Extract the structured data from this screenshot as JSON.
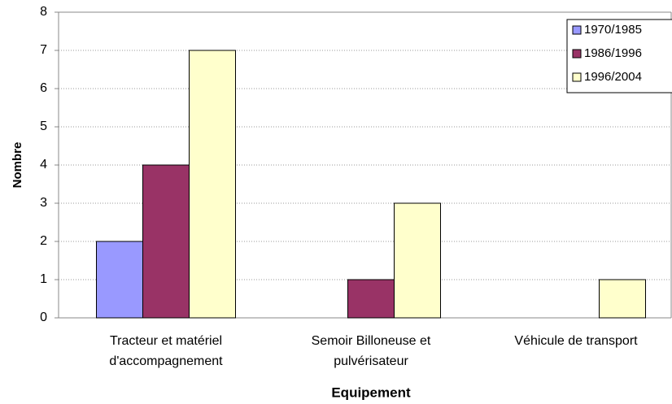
{
  "chart_data": {
    "type": "bar",
    "x_label": "Equipement",
    "y_label": "Nombre",
    "categories": [
      [
        "Tracteur et matériel",
        "d'accompagnement"
      ],
      [
        "Semoir Billoneuse et",
        "pulvérisateur"
      ],
      [
        "Véhicule de transport"
      ]
    ],
    "series": [
      {
        "name": "1970/1985",
        "color": "#9999ff",
        "values": [
          2,
          0,
          0
        ]
      },
      {
        "name": "1986/1996",
        "color": "#993366",
        "values": [
          4,
          1,
          0
        ]
      },
      {
        "name": "1996/2004",
        "color": "#ffffcc",
        "values": [
          7,
          3,
          1
        ]
      }
    ],
    "ylim": [
      0,
      8
    ],
    "yticks": [
      0,
      1,
      2,
      3,
      4,
      5,
      6,
      7,
      8
    ],
    "grid": true,
    "legend": "top-right"
  }
}
